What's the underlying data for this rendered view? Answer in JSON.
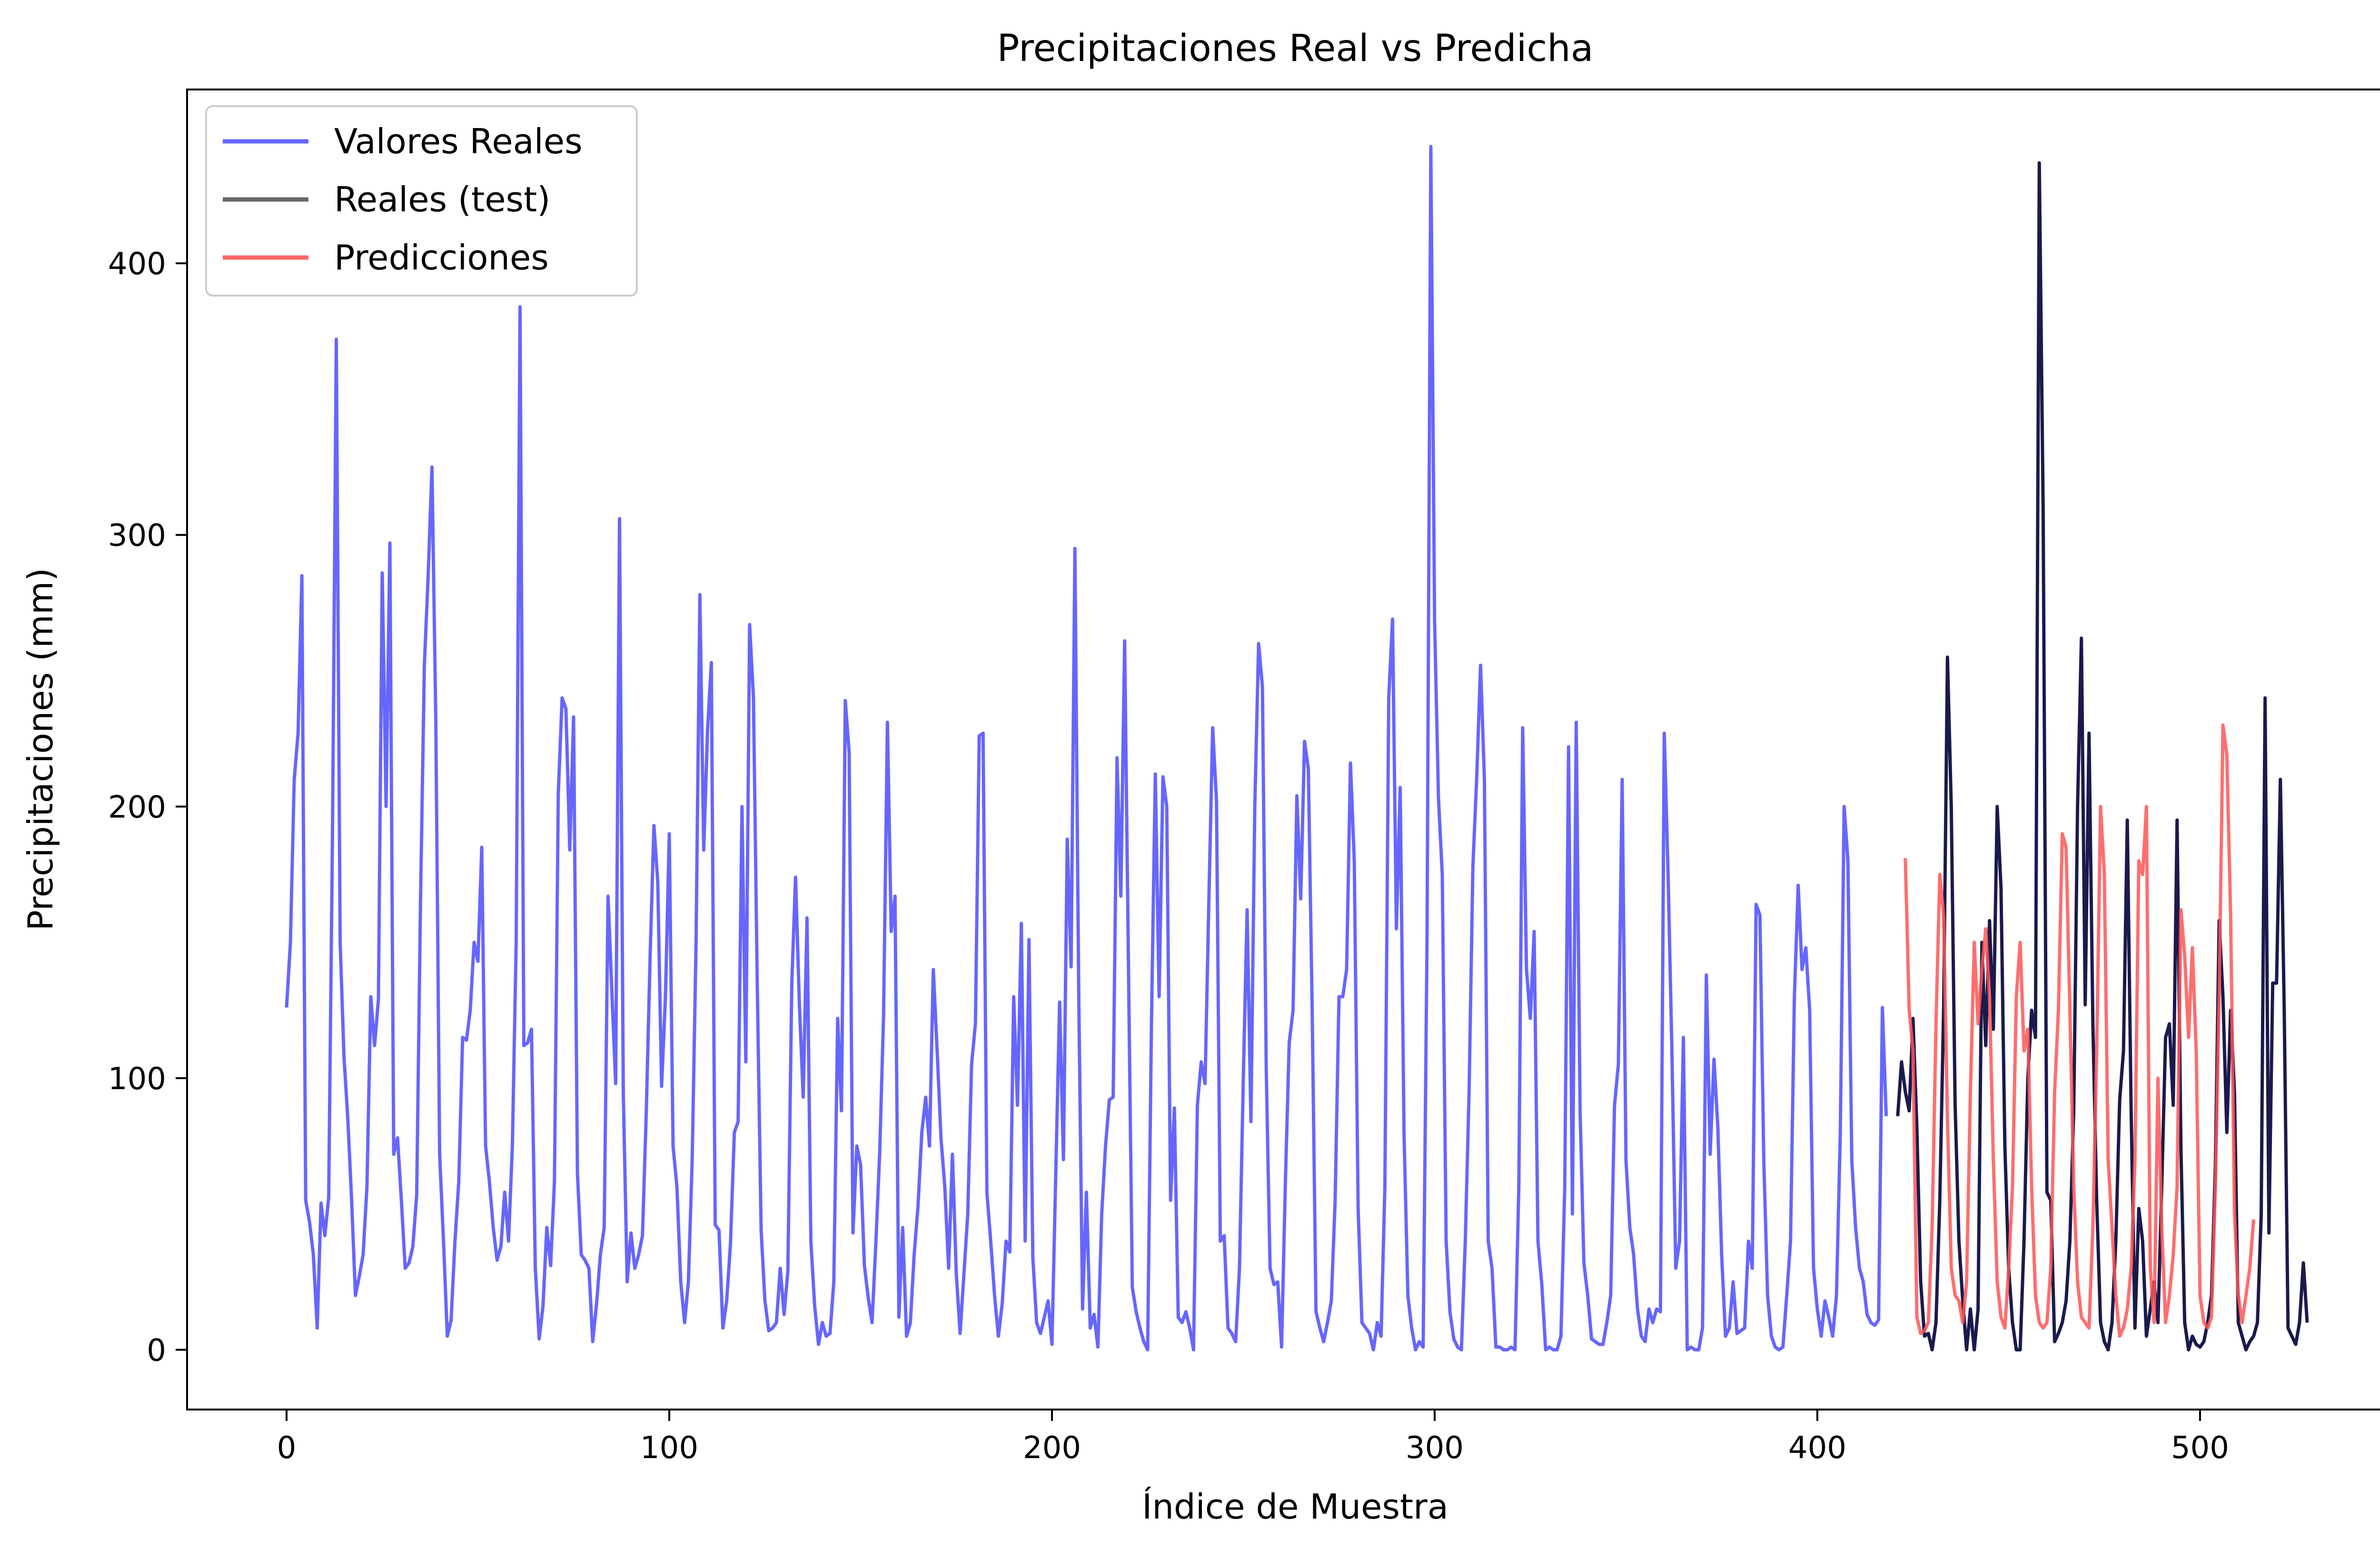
{
  "chart_data": {
    "type": "line",
    "title": "Precipitaciones Real vs Predicha",
    "xlabel": "Índice de Muestra",
    "ylabel": "Precipitaciones (mm)",
    "xlim": [
      -26,
      553
    ],
    "ylim": [
      -22,
      464
    ],
    "xticks": [
      0,
      100,
      200,
      300,
      400,
      500
    ],
    "yticks": [
      0,
      100,
      200,
      300,
      400
    ],
    "legend_position": "top-left",
    "grid": false,
    "series": [
      {
        "name": "Valores Reales",
        "color": "#6666ff",
        "x_start": 0,
        "values": [
          126,
          150,
          210,
          227,
          285,
          55,
          47,
          35,
          8,
          54,
          42,
          56,
          190,
          372,
          150,
          108,
          85,
          55,
          20,
          27,
          35,
          60,
          130,
          112,
          129,
          286,
          200,
          297,
          72,
          78,
          55,
          30,
          32,
          38,
          57,
          165,
          252,
          285,
          325,
          231,
          72,
          40,
          5,
          11,
          40,
          62,
          115,
          114,
          125,
          150,
          143,
          185,
          75,
          62,
          45,
          33,
          38,
          58,
          40,
          75,
          150,
          384,
          112,
          113,
          118,
          30,
          4,
          16,
          45,
          31,
          62,
          205,
          240,
          236,
          184,
          233,
          65,
          35,
          33,
          30,
          3,
          17,
          35,
          45,
          167,
          132,
          98,
          306,
          94,
          25,
          43,
          30,
          35,
          42,
          88,
          145,
          193,
          172,
          97,
          130,
          190,
          75,
          60,
          25,
          10,
          25,
          70,
          150,
          278,
          184,
          228,
          253,
          46,
          44,
          8,
          18,
          39,
          80,
          84,
          200,
          106,
          267,
          240,
          134,
          44,
          18,
          7,
          8,
          10,
          30,
          13,
          29,
          134,
          174,
          127,
          93,
          159,
          40,
          16,
          2,
          10,
          5,
          6,
          25,
          122,
          88,
          239,
          220,
          43,
          75,
          68,
          31,
          19,
          10,
          40,
          73,
          123,
          231,
          154,
          167,
          12,
          45,
          5,
          10,
          35,
          53,
          80,
          93,
          75,
          140,
          110,
          78,
          60,
          30,
          72,
          28,
          6,
          28,
          50,
          105,
          120,
          226,
          227,
          58,
          40,
          20,
          5,
          17,
          40,
          36,
          130,
          90,
          157,
          40,
          151,
          34,
          10,
          6,
          12,
          18,
          2,
          65,
          128,
          70,
          188,
          141,
          295,
          130,
          15,
          58,
          8,
          13,
          1,
          50,
          75,
          92,
          93,
          218,
          167,
          261,
          140,
          23,
          14,
          8,
          3,
          0,
          120,
          212,
          130,
          211,
          200,
          55,
          89,
          12,
          10,
          14,
          8,
          0,
          90,
          106,
          98,
          165,
          229,
          202,
          40,
          42,
          8,
          6,
          3,
          30,
          100,
          162,
          84,
          200,
          260,
          244,
          103,
          30,
          24,
          25,
          1,
          62,
          113,
          125,
          204,
          166,
          224,
          214,
          125,
          14,
          8,
          3,
          10,
          18,
          55,
          130,
          130,
          140,
          216,
          180,
          52,
          10,
          8,
          6,
          0,
          10,
          5,
          60,
          240,
          269,
          155,
          207,
          80,
          20,
          8,
          0,
          3,
          1,
          150,
          443,
          268,
          203,
          175,
          40,
          14,
          4,
          1,
          0,
          40,
          95,
          178,
          211,
          252,
          210,
          40,
          30,
          1,
          1,
          0,
          0,
          1,
          0,
          60,
          229,
          140,
          122,
          154,
          40,
          24,
          0,
          1,
          0,
          0,
          5,
          60,
          222,
          50,
          231,
          88,
          32,
          20,
          4,
          3,
          2,
          2,
          10,
          20,
          90,
          105,
          210,
          70,
          45,
          35,
          15,
          5,
          3,
          15,
          10,
          15,
          14,
          227,
          175,
          110,
          30,
          40,
          115,
          0,
          1,
          0,
          0,
          8,
          138,
          72,
          107,
          82,
          35,
          5,
          8,
          25,
          6,
          7,
          8,
          40,
          30,
          164,
          160,
          70,
          20,
          5,
          1,
          0,
          1,
          20,
          40,
          130,
          171,
          140,
          148,
          125,
          30,
          15,
          5,
          18,
          12,
          5,
          20,
          80,
          200,
          180,
          70,
          45,
          30,
          25,
          13,
          10,
          9,
          11,
          126,
          86
        ]
      },
      {
        "name": "Reales (test)",
        "color": "#1a1a4d",
        "x_start": 421,
        "values": [
          86,
          106,
          95,
          88,
          122,
          82,
          25,
          5,
          6,
          0,
          10,
          55,
          125,
          255,
          200,
          90,
          40,
          18,
          0,
          15,
          0,
          15,
          150,
          112,
          158,
          118,
          200,
          170,
          75,
          30,
          10,
          0,
          0,
          40,
          100,
          125,
          115,
          437,
          310,
          58,
          55,
          3,
          6,
          10,
          18,
          40,
          88,
          200,
          262,
          127,
          227,
          120,
          55,
          10,
          3,
          0,
          10,
          40,
          92,
          110,
          195,
          88,
          8,
          52,
          40,
          5,
          15,
          25,
          10,
          60,
          115,
          120,
          90,
          195,
          75,
          10,
          0,
          5,
          2,
          1,
          3,
          10,
          20,
          68,
          158,
          130,
          80,
          125,
          95,
          10,
          5,
          0,
          3,
          5,
          10,
          50,
          240,
          43,
          135,
          135,
          210,
          125,
          8,
          5,
          2,
          10,
          32,
          10
        ]
      },
      {
        "name": "Predicciones",
        "color": "#ff5555",
        "x_start": 423,
        "values": [
          181,
          125,
          110,
          12,
          6,
          7,
          10,
          45,
          120,
          175,
          160,
          85,
          30,
          20,
          18,
          10,
          25,
          95,
          150,
          120,
          140,
          155,
          130,
          70,
          25,
          12,
          8,
          30,
          60,
          130,
          150,
          110,
          118,
          60,
          20,
          10,
          8,
          10,
          30,
          95,
          125,
          190,
          185,
          125,
          60,
          25,
          12,
          10,
          8,
          45,
          110,
          200,
          175,
          70,
          45,
          20,
          5,
          8,
          15,
          30,
          70,
          180,
          175,
          200,
          30,
          10,
          100,
          45,
          10,
          20,
          35,
          60,
          162,
          145,
          115,
          148,
          110,
          20,
          10,
          8,
          12,
          60,
          130,
          230,
          219,
          160,
          50,
          20,
          10,
          20,
          30,
          48
        ]
      }
    ]
  }
}
